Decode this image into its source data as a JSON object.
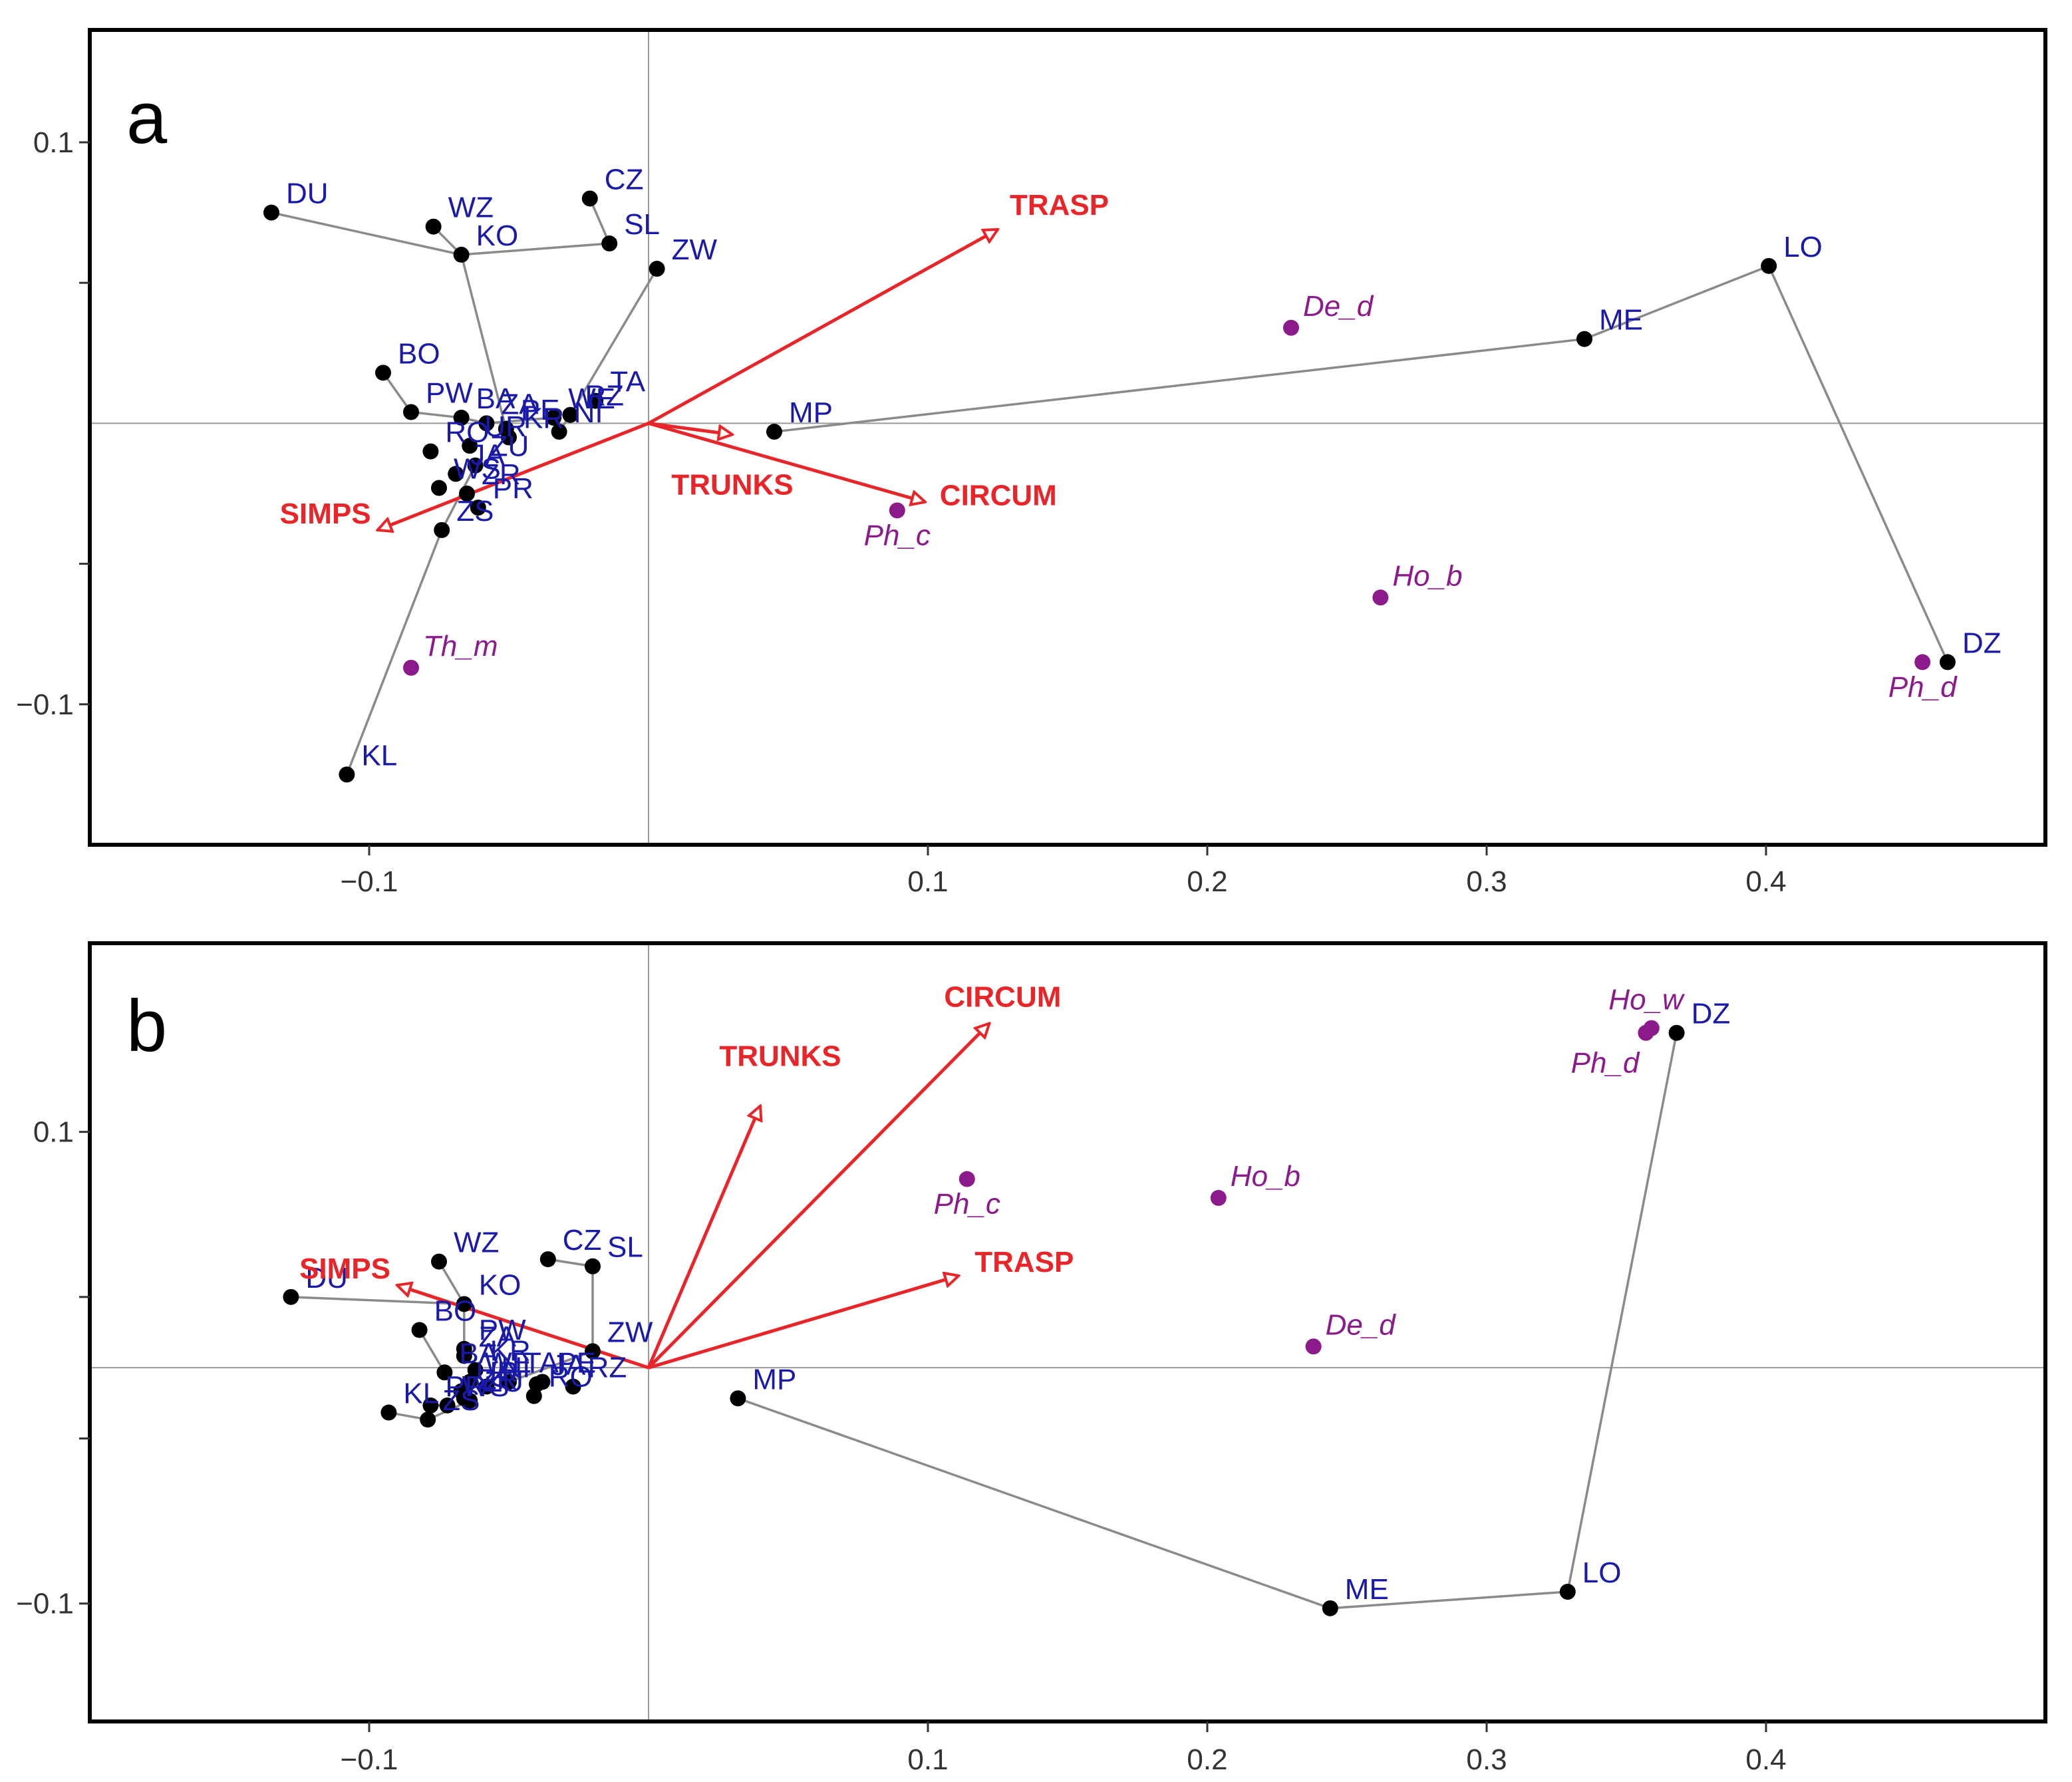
{
  "chart_data": [
    {
      "type": "scatter",
      "panel": "a",
      "xlim": [
        -0.2,
        0.5
      ],
      "ylim": [
        -0.15,
        0.14
      ],
      "xticks": [
        -0.1,
        0.1,
        0.2,
        0.3,
        0.4
      ],
      "xtick_labels": [
        "−0.1",
        "0.1",
        "0.2",
        "0.3",
        "0.4"
      ],
      "yticks": [
        -0.1,
        -0.05,
        0.05,
        0.1
      ],
      "ytick_labels": [
        "−0.1",
        "",
        "",
        "0.1"
      ],
      "sites": [
        {
          "label": "DU",
          "x": -0.135,
          "y": 0.075
        },
        {
          "label": "WZ",
          "x": -0.077,
          "y": 0.07
        },
        {
          "label": "KO",
          "x": -0.067,
          "y": 0.06
        },
        {
          "label": "CZ",
          "x": -0.021,
          "y": 0.08
        },
        {
          "label": "SL",
          "x": -0.014,
          "y": 0.064
        },
        {
          "label": "ZW",
          "x": 0.003,
          "y": 0.055
        },
        {
          "label": "BO",
          "x": -0.095,
          "y": 0.018
        },
        {
          "label": "PW",
          "x": -0.085,
          "y": 0.004
        },
        {
          "label": "BA",
          "x": -0.067,
          "y": 0.002
        },
        {
          "label": "ZA",
          "x": -0.058,
          "y": 0.0
        },
        {
          "label": "PE",
          "x": -0.051,
          "y": -0.002
        },
        {
          "label": "WE",
          "x": -0.034,
          "y": 0.002
        },
        {
          "label": "TA",
          "x": -0.019,
          "y": 0.008
        },
        {
          "label": "RZ",
          "x": -0.028,
          "y": 0.003
        },
        {
          "label": "RO",
          "x": -0.078,
          "y": -0.01
        },
        {
          "label": "UR",
          "x": -0.064,
          "y": -0.008
        },
        {
          "label": "KR",
          "x": -0.05,
          "y": -0.005
        },
        {
          "label": "NI",
          "x": -0.032,
          "y": -0.003
        },
        {
          "label": "WS",
          "x": -0.075,
          "y": -0.023
        },
        {
          "label": "ZU",
          "x": -0.062,
          "y": -0.015
        },
        {
          "label": "ZR",
          "x": -0.065,
          "y": -0.025
        },
        {
          "label": "JA",
          "x": -0.069,
          "y": -0.018
        },
        {
          "label": "ZS",
          "x": -0.074,
          "y": -0.038
        },
        {
          "label": "PR",
          "x": -0.061,
          "y": -0.03
        },
        {
          "label": "KL",
          "x": -0.108,
          "y": -0.125
        },
        {
          "label": "MP",
          "x": 0.045,
          "y": -0.003
        },
        {
          "label": "ME",
          "x": 0.335,
          "y": 0.03
        },
        {
          "label": "LO",
          "x": 0.401,
          "y": 0.056
        },
        {
          "label": "DZ",
          "x": 0.465,
          "y": -0.085
        }
      ],
      "spider_lines": [
        [
          "DU",
          "KO"
        ],
        [
          "WZ",
          "KO"
        ],
        [
          "KO",
          "PE"
        ],
        [
          "CZ",
          "SL"
        ],
        [
          "SL",
          "KO"
        ],
        [
          "ZW",
          "RZ"
        ],
        [
          "RZ",
          "NI"
        ],
        [
          "KL",
          "ZS"
        ],
        [
          "ZS",
          "ZU"
        ],
        [
          "BO",
          "PW"
        ],
        [
          "PW",
          "BA"
        ],
        [
          "BA",
          "ZA"
        ],
        [
          "ZA",
          "WE"
        ],
        [
          "MP",
          "ME"
        ],
        [
          "ME",
          "LO"
        ],
        [
          "LO",
          "DZ"
        ]
      ],
      "species": [
        {
          "label": "De_d",
          "x": 0.23,
          "y": 0.034
        },
        {
          "label": "Ph_c",
          "x": 0.089,
          "y": -0.031
        },
        {
          "label": "Ho_b",
          "x": 0.262,
          "y": -0.062
        },
        {
          "label": "Th_m",
          "x": -0.085,
          "y": -0.087
        },
        {
          "label": "Ph_d",
          "x": 0.456,
          "y": -0.085
        }
      ],
      "env_vectors": [
        {
          "label": "TRASP",
          "x": 0.125,
          "y": 0.069
        },
        {
          "label": "TRUNKS",
          "x": 0.03,
          "y": -0.004
        },
        {
          "label": "CIRCUM",
          "x": 0.099,
          "y": -0.028
        },
        {
          "label": "SIMPS",
          "x": -0.097,
          "y": -0.038
        }
      ]
    },
    {
      "type": "scatter",
      "panel": "b",
      "xlim": [
        -0.2,
        0.5
      ],
      "ylim": [
        -0.15,
        0.18
      ],
      "xticks": [
        -0.1,
        0.1,
        0.2,
        0.3,
        0.4
      ],
      "xtick_labels": [
        "−0.1",
        "0.1",
        "0.2",
        "0.3",
        "0.4"
      ],
      "yticks": [
        -0.1,
        -0.03,
        0.03,
        0.1
      ],
      "ytick_labels": [
        "−0.1",
        "",
        "",
        "0.1"
      ],
      "sites": [
        {
          "label": "DU",
          "x": -0.128,
          "y": 0.03
        },
        {
          "label": "WZ",
          "x": -0.075,
          "y": 0.045
        },
        {
          "label": "KO",
          "x": -0.066,
          "y": 0.027
        },
        {
          "label": "CZ",
          "x": -0.036,
          "y": 0.046
        },
        {
          "label": "SL",
          "x": -0.02,
          "y": 0.043
        },
        {
          "label": "ZW",
          "x": -0.02,
          "y": 0.007
        },
        {
          "label": "BO",
          "x": -0.082,
          "y": 0.016
        },
        {
          "label": "PW",
          "x": -0.066,
          "y": 0.008
        },
        {
          "label": "BA",
          "x": -0.073,
          "y": -0.002
        },
        {
          "label": "ZA",
          "x": -0.066,
          "y": 0.005
        },
        {
          "label": "KR",
          "x": -0.062,
          "y": -0.001
        },
        {
          "label": "WE",
          "x": -0.064,
          "y": -0.006
        },
        {
          "label": "PE",
          "x": -0.038,
          "y": -0.006
        },
        {
          "label": "TA",
          "x": -0.05,
          "y": -0.006
        },
        {
          "label": "JA",
          "x": -0.04,
          "y": -0.007
        },
        {
          "label": "RZ",
          "x": -0.027,
          "y": -0.008
        },
        {
          "label": "UR",
          "x": -0.067,
          "y": -0.01
        },
        {
          "label": "ZU",
          "x": -0.064,
          "y": -0.014
        },
        {
          "label": "WS",
          "x": -0.072,
          "y": -0.016
        },
        {
          "label": "ZR",
          "x": -0.066,
          "y": -0.013
        },
        {
          "label": "RO",
          "x": -0.041,
          "y": -0.012
        },
        {
          "label": "NI",
          "x": -0.058,
          "y": -0.008
        },
        {
          "label": "PR",
          "x": -0.078,
          "y": -0.016
        },
        {
          "label": "ZS",
          "x": -0.079,
          "y": -0.022
        },
        {
          "label": "KL",
          "x": -0.093,
          "y": -0.019
        },
        {
          "label": "MP",
          "x": 0.032,
          "y": -0.013
        },
        {
          "label": "ME",
          "x": 0.244,
          "y": -0.102
        },
        {
          "label": "LO",
          "x": 0.329,
          "y": -0.095
        },
        {
          "label": "DZ",
          "x": 0.368,
          "y": 0.142
        }
      ],
      "spider_lines": [
        [
          "DU",
          "KO"
        ],
        [
          "WZ",
          "KO"
        ],
        [
          "KO",
          "PW"
        ],
        [
          "CZ",
          "SL"
        ],
        [
          "SL",
          "ZW"
        ],
        [
          "ZW",
          "TA"
        ],
        [
          "BO",
          "BA"
        ],
        [
          "KL",
          "ZS"
        ],
        [
          "ZS",
          "ZU"
        ],
        [
          "PR",
          "WS"
        ],
        [
          "MP",
          "ME"
        ],
        [
          "ME",
          "LO"
        ],
        [
          "LO",
          "DZ"
        ]
      ],
      "species": [
        {
          "label": "Ho_w",
          "x": 0.359,
          "y": 0.144
        },
        {
          "label": "Ph_d",
          "x": 0.357,
          "y": 0.142
        },
        {
          "label": "Ph_c",
          "x": 0.114,
          "y": 0.08
        },
        {
          "label": "Ho_b",
          "x": 0.204,
          "y": 0.072
        },
        {
          "label": "De_d",
          "x": 0.238,
          "y": 0.009
        }
      ],
      "env_vectors": [
        {
          "label": "CIRCUM",
          "x": 0.122,
          "y": 0.146
        },
        {
          "label": "TRUNKS",
          "x": 0.04,
          "y": 0.111
        },
        {
          "label": "TRASP",
          "x": 0.111,
          "y": 0.039
        },
        {
          "label": "SIMPS",
          "x": -0.09,
          "y": 0.035
        }
      ]
    }
  ]
}
